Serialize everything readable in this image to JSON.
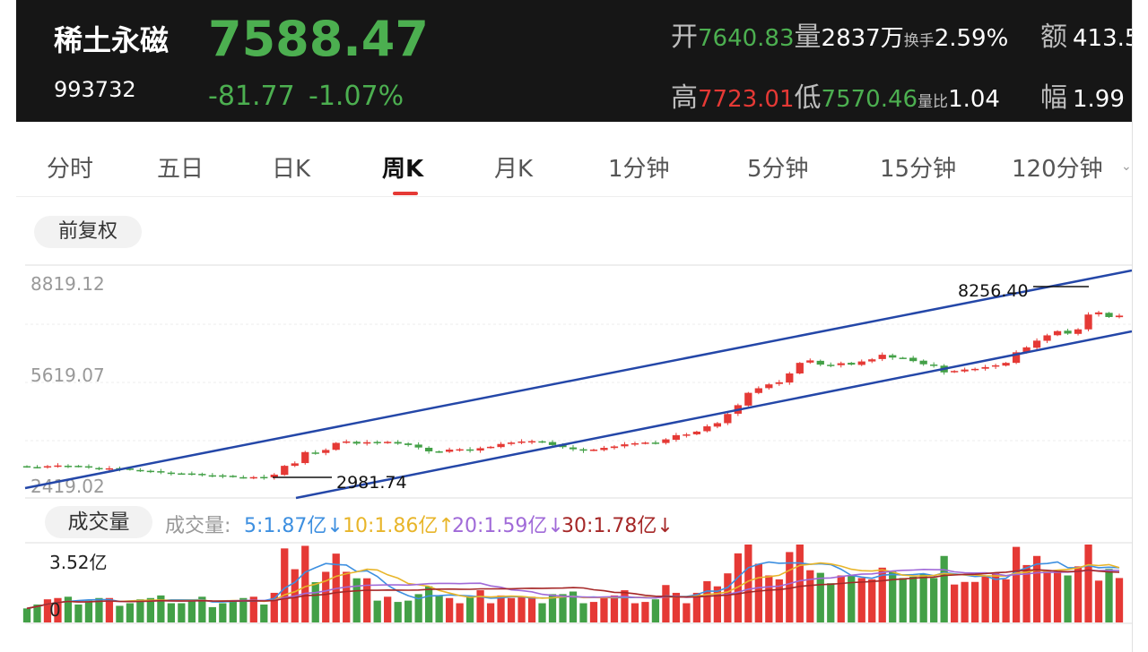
{
  "stock": {
    "name": "稀土永磁",
    "code": "993732",
    "price": "7588.47",
    "change": "-81.77",
    "change_pct": "-1.07%"
  },
  "quote": {
    "open_label": "开",
    "open": "7640.83",
    "vol_label": "量",
    "vol": "2837万",
    "turnover_label": "换手",
    "turnover": "2.59%",
    "amount_label": "额",
    "amount": "413.5",
    "high_label": "高",
    "high": "7723.01",
    "low_label": "低",
    "low": "7570.46",
    "vr_label": "量比",
    "vr": "1.04",
    "amp_label": "幅",
    "amp": "1.99"
  },
  "tabs": [
    {
      "label": "分时"
    },
    {
      "label": "五日"
    },
    {
      "label": "日K"
    },
    {
      "label": "周K"
    },
    {
      "label": "月K"
    },
    {
      "label": "1分钟"
    },
    {
      "label": "5分钟"
    },
    {
      "label": "15分钟"
    },
    {
      "label": "120分钟"
    }
  ],
  "active_tab": "周K",
  "adjust_label": "前复权",
  "chart": {
    "y_labels": [
      "8819.12",
      "5619.07",
      "2419.02"
    ],
    "low_annotation": "2981.74",
    "high_annotation": "8256.40"
  },
  "volume": {
    "button": "成交量",
    "label": "成交量:",
    "ma5": "5:1.87亿↓",
    "ma10": "10:1.86亿↑",
    "ma20": "20:1.59亿↓",
    "ma30": "30:1.78亿↓",
    "max_label": "3.52亿",
    "zero_label": "0"
  },
  "colors": {
    "up": "#e53935",
    "down": "#43a047",
    "ma5": "#3d8fe0",
    "ma10": "#e8b52a",
    "ma20": "#a06ad8",
    "ma30": "#a52727"
  },
  "chart_data": {
    "type": "candlestick",
    "y_range": [
      2419.02,
      8819.12
    ],
    "approx_closes": [
      3300,
      3290,
      3320,
      3340,
      3330,
      3310,
      3280,
      3250,
      3260,
      3240,
      3220,
      3190,
      3170,
      3150,
      3120,
      3110,
      3090,
      3070,
      3060,
      3040,
      3020,
      3000,
      3010,
      2990,
      3080,
      3330,
      3400,
      3720,
      3700,
      3780,
      3980,
      4020,
      3960,
      4000,
      3990,
      4010,
      3960,
      3920,
      3850,
      3740,
      3720,
      3790,
      3800,
      3760,
      3830,
      3870,
      3950,
      3990,
      4020,
      4030,
      4000,
      3920,
      3860,
      3800,
      3760,
      3790,
      3840,
      3880,
      3940,
      3970,
      3990,
      3970,
      4080,
      4200,
      4220,
      4300,
      4450,
      4540,
      4800,
      5050,
      5400,
      5530,
      5640,
      5700,
      5950,
      6250,
      6320,
      6200,
      6180,
      6240,
      6200,
      6290,
      6350,
      6480,
      6400,
      6390,
      6300,
      6210,
      6170,
      5980,
      6020,
      6060,
      6080,
      6130,
      6180,
      6250,
      6550,
      6690,
      6880,
      7030,
      7150,
      7080,
      7200,
      7620,
      7680,
      7550,
      7590
    ]
  }
}
